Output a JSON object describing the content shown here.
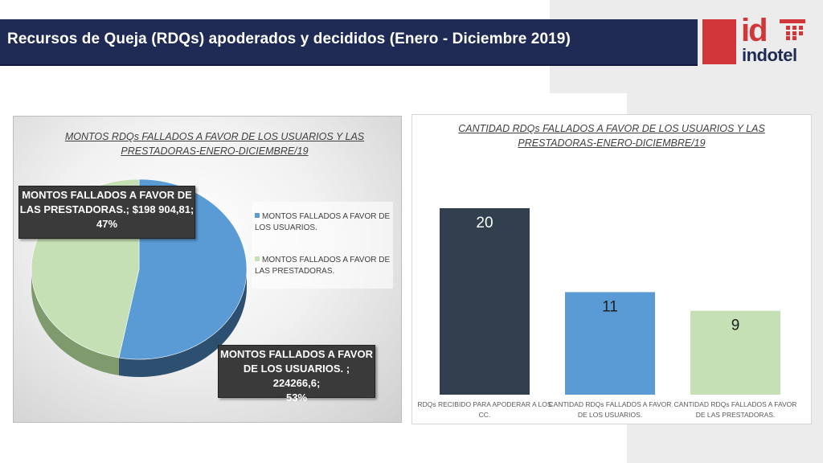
{
  "header": {
    "title": "Recursos de Queja (RDQs) apoderados y decididos  (Enero - Diciembre 2019)",
    "logo_id": "id",
    "logo_name": "indotel"
  },
  "colors": {
    "header_bg": "#1f2b54",
    "logo_red": "#d0363a",
    "pie_users": "#5b9bd5",
    "pie_providers": "#c5e0b4",
    "bar_dark": "#323f4f",
    "bar_blue": "#5b9bd5",
    "bar_green": "#c5e0b4"
  },
  "chart_data": [
    {
      "type": "pie",
      "title": "MONTOS RDQs FALLADOS A FAVOR DE LOS  USUARIOS Y LAS PRESTADORAS-ENERO-DICIEMBRE/19",
      "title_lines": [
        "MONTOS RDQs FALLADOS A FAVOR DE LOS  USUARIOS Y LAS",
        "PRESTADORAS-ENERO-DICIEMBRE/19"
      ],
      "categories": [
        "MONTOS  FALLADOS A FAVOR DE LOS USUARIOS.",
        "MONTOS FALLADOS  A FAVOR DE LAS PRESTADORAS."
      ],
      "values": [
        224266.6,
        198904.81
      ],
      "percents": [
        53,
        47
      ],
      "legend": [
        {
          "lines": [
            "MONTOS  FALLADOS A FAVOR DE",
            "LOS USUARIOS."
          ],
          "color": "#5b9bd5"
        },
        {
          "lines": [
            "MONTOS FALLADOS  A FAVOR DE",
            "LAS PRESTADORAS."
          ],
          "color": "#c5e0b4"
        }
      ],
      "legend_position": "right",
      "data_labels": [
        {
          "lines": [
            "MONTOS  FALLADOS A FAVOR",
            "DE LOS USUARIOS. ; 224266,6;",
            "53%"
          ]
        },
        {
          "lines": [
            "MONTOS FALLADOS  A FAVOR DE",
            "LAS PRESTADORAS.; $198 904,81;",
            "47%"
          ]
        }
      ]
    },
    {
      "type": "bar",
      "title": "CANTIDAD RDQs FALLADOS A FAVOR DE LOS USUARIOS Y LAS PRESTADORAS-ENERO-DICIEMBRE/19",
      "title_lines": [
        "CANTIDAD RDQs FALLADOS A FAVOR DE LOS USUARIOS Y LAS",
        "PRESTADORAS-ENERO-DICIEMBRE/19"
      ],
      "categories": [
        "RDQs RECIBIDO PARA APODERAR A LOS CC.",
        "CANTIDAD RDQs FALLADOS A FAVOR DE LOS USUARIOS.",
        "CANTIDAD RDQs FALLADOS A FAVOR DE LAS PRESTADORAS."
      ],
      "category_lines": [
        [
          "RDQs RECIBIDO PARA APODERAR A LOS",
          "CC."
        ],
        [
          "CANTIDAD RDQs FALLADOS A FAVOR",
          "DE LOS USUARIOS."
        ],
        [
          "CANTIDAD RDQs FALLADOS A FAVOR",
          "DE LAS PRESTADORAS."
        ]
      ],
      "values": [
        20,
        11,
        9
      ],
      "value_labels": [
        "20",
        "11",
        "9"
      ],
      "grid": false
    }
  ]
}
